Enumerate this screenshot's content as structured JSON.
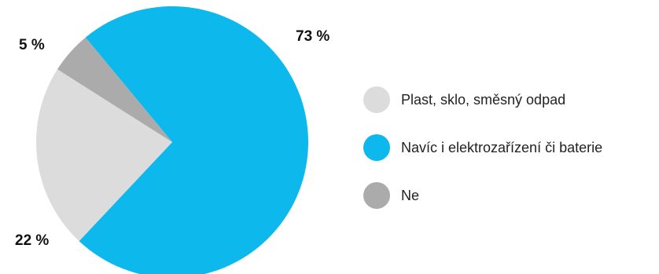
{
  "chart_data": {
    "type": "pie",
    "title": "",
    "slices": [
      {
        "label": "Navíc i elektrozařízení či baterie",
        "value": 73,
        "display": "73 %",
        "color": "#0DB9EC"
      },
      {
        "label": "Plast, sklo, směsný odpad",
        "value": 22,
        "display": "22 %",
        "color": "#DCDCDC"
      },
      {
        "label": "Ne",
        "value": 5,
        "display": "5 %",
        "color": "#ABABAB"
      }
    ],
    "legend": {
      "placement": "right",
      "entries": [
        {
          "label": "Plast, sklo, směsný odpad",
          "color": "#DCDCDC"
        },
        {
          "label": "Navíc i elektrozařízení či baterie",
          "color": "#0DB9EC"
        },
        {
          "label": "Ne",
          "color": "#ABABAB"
        }
      ]
    }
  }
}
